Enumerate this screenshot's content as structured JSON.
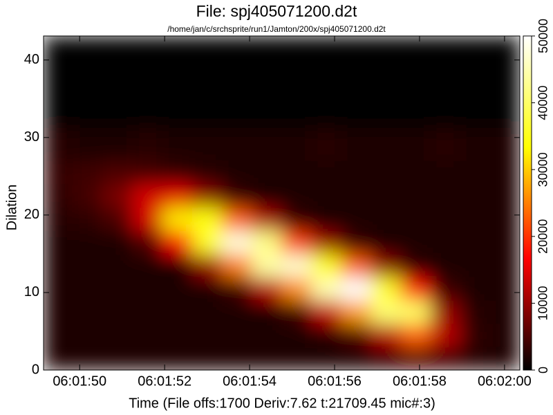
{
  "chart_data": {
    "type": "heatmap",
    "title": "File: spj405071200.d2t",
    "subtitle": "/home/jan/c/srchsprite/run1/Jamton/200x/spj405071200.d2t",
    "xlabel": "Time (File offs:1700 Deriv:7.62 t:21709.45 mic#:3)",
    "ylabel": "Dilation",
    "xlim": [
      "06:01:49.15",
      "06:02:00.36"
    ],
    "xticks": [
      "06:01:50",
      "06:01:52",
      "06:01:54",
      "06:01:56",
      "06:01:58",
      "06:02:00"
    ],
    "ylim": [
      0,
      43.1
    ],
    "yticks": [
      0,
      10,
      20,
      30,
      40
    ],
    "x_edges": [
      "06:01:49.15",
      "06:01:49.85",
      "06:01:50.55",
      "06:01:51.25",
      "06:01:51.95",
      "06:01:52.65",
      "06:01:53.35",
      "06:01:54.05",
      "06:01:54.75",
      "06:01:55.45",
      "06:01:56.15",
      "06:01:56.85",
      "06:01:57.55",
      "06:01:58.25",
      "06:01:58.95",
      "06:01:59.65",
      "06:02:00.35"
    ],
    "y_edges": [
      0,
      3,
      6,
      9,
      12,
      15,
      18,
      21,
      24,
      27,
      31.3,
      43.1
    ],
    "z": [
      [
        2000,
        2000,
        2000,
        2000,
        2000,
        2000,
        2000,
        2000,
        2000,
        2000,
        2000,
        3000,
        5000,
        4000,
        2500,
        2000
      ],
      [
        2000,
        2000,
        2000,
        2000,
        2000,
        2000,
        2000,
        2000,
        2000,
        2500,
        5000,
        12000,
        23000,
        12000,
        3000,
        2000
      ],
      [
        2000,
        2000,
        2000,
        2000,
        2000,
        2000,
        2000,
        2000,
        4000,
        13000,
        27000,
        41000,
        40000,
        10000,
        2500,
        2000
      ],
      [
        2000,
        2000,
        2000,
        2000,
        2000,
        2000,
        4000,
        12000,
        26000,
        45000,
        50000,
        36000,
        18000,
        4000,
        2000,
        2000
      ],
      [
        2000,
        2000,
        2000,
        2000,
        2000,
        10000,
        25000,
        44000,
        47000,
        34000,
        23000,
        9000,
        3000,
        2000,
        2000,
        2000
      ],
      [
        2000,
        2000,
        2000,
        5000,
        17000,
        36000,
        48000,
        42000,
        21000,
        10000,
        3500,
        2000,
        2000,
        2000,
        2000,
        2000
      ],
      [
        2500,
        3000,
        5000,
        14000,
        32000,
        34000,
        23000,
        11000,
        3500,
        2000,
        2000,
        2000,
        2000,
        2000,
        2000,
        2000
      ],
      [
        3000,
        4500,
        8000,
        14000,
        15000,
        9000,
        3500,
        2000,
        2000,
        2000,
        2000,
        2000,
        2000,
        2000,
        2000,
        2000
      ],
      [
        3500,
        4000,
        5000,
        4500,
        3500,
        2500,
        2000,
        2000,
        2000,
        2000,
        2000,
        2000,
        2000,
        2000,
        2000,
        2000
      ],
      [
        2500,
        2000,
        2000,
        2500,
        2000,
        2000,
        2000,
        2000,
        2000,
        2500,
        2000,
        2000,
        2000,
        2500,
        2000,
        2000
      ],
      [
        0,
        0,
        0,
        0,
        0,
        0,
        0,
        0,
        0,
        0,
        0,
        0,
        0,
        0,
        0,
        0
      ]
    ],
    "clim": [
      0,
      50000
    ],
    "cticks": [
      0,
      10000,
      20000,
      30000,
      40000,
      50000
    ],
    "colormap": [
      "#000000",
      "#ff0000",
      "#ffff00",
      "#ffffff"
    ]
  }
}
